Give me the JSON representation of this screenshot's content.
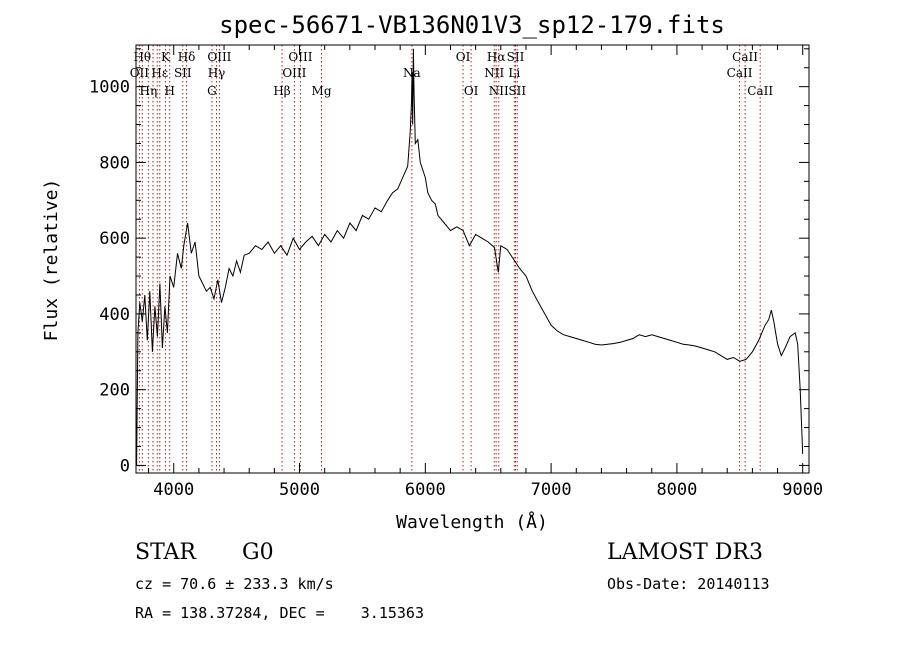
{
  "chart_data": {
    "type": "line",
    "title": "spec-56671-VB136N01V3_sp12-179.fits",
    "xlabel": "Wavelength (Å)",
    "ylabel": "Flux (relative)",
    "xlim": [
      3700,
      9050
    ],
    "ylim": [
      -20,
      1110
    ],
    "xticks": [
      4000,
      5000,
      6000,
      7000,
      8000,
      9000
    ],
    "yticks": [
      0,
      200,
      400,
      600,
      800,
      1000
    ],
    "line_color": "#000000",
    "marker_color": "#b22222",
    "series": [
      {
        "name": "spectrum",
        "points": [
          [
            3705,
            0
          ],
          [
            3715,
            350
          ],
          [
            3730,
            430
          ],
          [
            3750,
            380
          ],
          [
            3770,
            450
          ],
          [
            3790,
            330
          ],
          [
            3810,
            460
          ],
          [
            3830,
            300
          ],
          [
            3850,
            420
          ],
          [
            3870,
            340
          ],
          [
            3890,
            480
          ],
          [
            3910,
            310
          ],
          [
            3930,
            420
          ],
          [
            3950,
            350
          ],
          [
            3970,
            500
          ],
          [
            4000,
            470
          ],
          [
            4030,
            560
          ],
          [
            4060,
            520
          ],
          [
            4080,
            580
          ],
          [
            4110,
            640
          ],
          [
            4140,
            560
          ],
          [
            4170,
            590
          ],
          [
            4200,
            500
          ],
          [
            4230,
            480
          ],
          [
            4260,
            460
          ],
          [
            4290,
            470
          ],
          [
            4320,
            440
          ],
          [
            4350,
            490
          ],
          [
            4380,
            430
          ],
          [
            4410,
            470
          ],
          [
            4440,
            520
          ],
          [
            4470,
            500
          ],
          [
            4500,
            540
          ],
          [
            4530,
            510
          ],
          [
            4560,
            555
          ],
          [
            4600,
            560
          ],
          [
            4650,
            580
          ],
          [
            4700,
            570
          ],
          [
            4750,
            590
          ],
          [
            4800,
            560
          ],
          [
            4850,
            580
          ],
          [
            4900,
            555
          ],
          [
            4950,
            600
          ],
          [
            5000,
            570
          ],
          [
            5050,
            590
          ],
          [
            5100,
            605
          ],
          [
            5150,
            580
          ],
          [
            5200,
            610
          ],
          [
            5250,
            590
          ],
          [
            5300,
            620
          ],
          [
            5350,
            600
          ],
          [
            5400,
            640
          ],
          [
            5450,
            620
          ],
          [
            5500,
            660
          ],
          [
            5550,
            650
          ],
          [
            5600,
            680
          ],
          [
            5650,
            670
          ],
          [
            5700,
            700
          ],
          [
            5740,
            720
          ],
          [
            5780,
            730
          ],
          [
            5820,
            760
          ],
          [
            5860,
            790
          ],
          [
            5880,
            880
          ],
          [
            5890,
            960
          ],
          [
            5895,
            1040
          ],
          [
            5900,
            900
          ],
          [
            5905,
            1100
          ],
          [
            5910,
            990
          ],
          [
            5920,
            850
          ],
          [
            5940,
            860
          ],
          [
            5960,
            800
          ],
          [
            5980,
            780
          ],
          [
            6000,
            760
          ],
          [
            6020,
            720
          ],
          [
            6050,
            700
          ],
          [
            6080,
            690
          ],
          [
            6100,
            660
          ],
          [
            6150,
            640
          ],
          [
            6200,
            620
          ],
          [
            6250,
            630
          ],
          [
            6300,
            620
          ],
          [
            6350,
            580
          ],
          [
            6400,
            610
          ],
          [
            6450,
            600
          ],
          [
            6500,
            590
          ],
          [
            6550,
            575
          ],
          [
            6580,
            510
          ],
          [
            6600,
            580
          ],
          [
            6650,
            570
          ],
          [
            6700,
            545
          ],
          [
            6750,
            520
          ],
          [
            6800,
            500
          ],
          [
            6850,
            460
          ],
          [
            6900,
            430
          ],
          [
            6950,
            400
          ],
          [
            7000,
            370
          ],
          [
            7050,
            355
          ],
          [
            7100,
            345
          ],
          [
            7150,
            340
          ],
          [
            7200,
            335
          ],
          [
            7250,
            330
          ],
          [
            7300,
            325
          ],
          [
            7350,
            320
          ],
          [
            7400,
            318
          ],
          [
            7450,
            320
          ],
          [
            7500,
            322
          ],
          [
            7550,
            325
          ],
          [
            7600,
            330
          ],
          [
            7650,
            335
          ],
          [
            7700,
            345
          ],
          [
            7750,
            340
          ],
          [
            7800,
            345
          ],
          [
            7850,
            340
          ],
          [
            7900,
            335
          ],
          [
            7950,
            330
          ],
          [
            8000,
            325
          ],
          [
            8050,
            320
          ],
          [
            8100,
            318
          ],
          [
            8150,
            315
          ],
          [
            8200,
            310
          ],
          [
            8250,
            305
          ],
          [
            8300,
            300
          ],
          [
            8350,
            290
          ],
          [
            8400,
            280
          ],
          [
            8450,
            285
          ],
          [
            8500,
            275
          ],
          [
            8550,
            280
          ],
          [
            8600,
            300
          ],
          [
            8650,
            330
          ],
          [
            8700,
            370
          ],
          [
            8730,
            385
          ],
          [
            8750,
            410
          ],
          [
            8770,
            380
          ],
          [
            8800,
            320
          ],
          [
            8830,
            290
          ],
          [
            8860,
            310
          ],
          [
            8900,
            340
          ],
          [
            8940,
            350
          ],
          [
            8960,
            320
          ],
          [
            8980,
            200
          ],
          [
            9000,
            30
          ]
        ]
      }
    ],
    "line_markers": [
      {
        "wavelength": 3750,
        "label": "Hθ",
        "row": 0
      },
      {
        "wavelength": 3727,
        "label": "OII",
        "row": 1
      },
      {
        "wavelength": 3798,
        "label": "Hη",
        "row": 2
      },
      {
        "wavelength": 3835,
        "label": "",
        "row": 2
      },
      {
        "wavelength": 3889,
        "label": "Hε",
        "row": 1
      },
      {
        "wavelength": 3869,
        "label": "",
        "row": 1
      },
      {
        "wavelength": 3934,
        "label": "K",
        "row": 0
      },
      {
        "wavelength": 3968,
        "label": "H",
        "row": 2
      },
      {
        "wavelength": 4072,
        "label": "SII",
        "row": 1
      },
      {
        "wavelength": 4102,
        "label": "Hδ",
        "row": 0
      },
      {
        "wavelength": 4304,
        "label": "G",
        "row": 2
      },
      {
        "wavelength": 4340,
        "label": "Hγ",
        "row": 1
      },
      {
        "wavelength": 4363,
        "label": "OIII",
        "row": 0
      },
      {
        "wavelength": 4861,
        "label": "Hβ",
        "row": 2
      },
      {
        "wavelength": 4959,
        "label": "OIII",
        "row": 1
      },
      {
        "wavelength": 5007,
        "label": "OIII",
        "row": 0
      },
      {
        "wavelength": 5175,
        "label": "Mg",
        "row": 2
      },
      {
        "wavelength": 5893,
        "label": "Na",
        "row": 1
      },
      {
        "wavelength": 6300,
        "label": "OI",
        "row": 0
      },
      {
        "wavelength": 6364,
        "label": "OI",
        "row": 2
      },
      {
        "wavelength": 6548,
        "label": "NII",
        "row": 1
      },
      {
        "wavelength": 6563,
        "label": "Hα",
        "row": 0
      },
      {
        "wavelength": 6584,
        "label": "NII",
        "row": 2
      },
      {
        "wavelength": 6707,
        "label": "Li",
        "row": 1
      },
      {
        "wavelength": 6717,
        "label": "SII",
        "row": 0
      },
      {
        "wavelength": 6731,
        "label": "SII",
        "row": 2
      },
      {
        "wavelength": 8498,
        "label": "CaII",
        "row": 1
      },
      {
        "wavelength": 8542,
        "label": "CaII",
        "row": 0
      },
      {
        "wavelength": 8662,
        "label": "CaII",
        "row": 2
      }
    ]
  },
  "info": {
    "object_class": "STAR",
    "subclass": "G0",
    "survey": "LAMOST DR3",
    "redshift": "cz = 70.6 ± 233.3 km/s",
    "obs_date": "Obs-Date: 20140113",
    "coords": "RA = 138.37284, DEC =    3.15363"
  }
}
